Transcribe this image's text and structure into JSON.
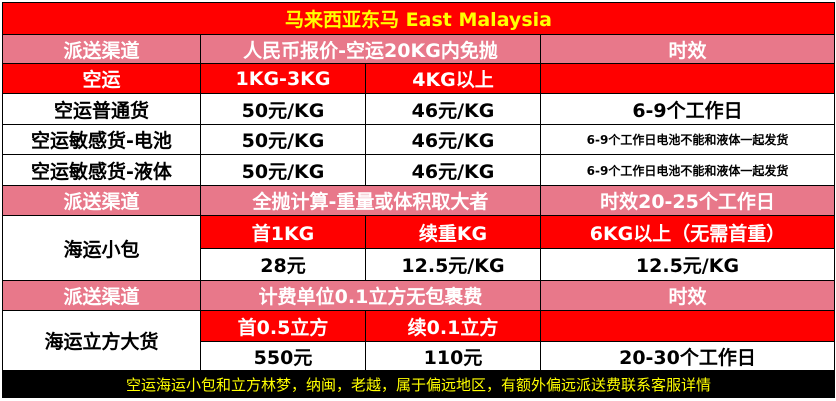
{
  "title": "马来西亚东马 East Malaysia",
  "table": {
    "rows": [
      [
        "派送渠道",
        "人民币报价-空运20KG内免抛",
        "时效"
      ],
      [
        "空运",
        "1KG-3KG",
        "4KG以上"
      ],
      [
        "空运普通货",
        "50元/KG",
        "46元/KG",
        "6-9个工作日"
      ],
      [
        "空运敏感货-电池",
        "50元/KG",
        "46元/KG",
        "6-9个工作日电池不能和液体一起发货"
      ],
      [
        "空运敏感货-液体",
        "50元/KG",
        "46元/KG",
        "6-9个工作日电池不能和液体一起发货"
      ],
      [
        "派送渠道",
        "全抛计算-重量或体积取大者",
        "时效20-25个工作日"
      ],
      [
        "海运小包",
        "首1KG",
        "续重KG",
        "6KG以上（无需首重）"
      ],
      [
        "28元",
        "12.5元/KG",
        "12.5元/KG"
      ],
      [
        "派送渠道",
        "计费单位0.1立方无包裹费",
        "时效"
      ],
      [
        "海运立方大货",
        "首0.5立方",
        "续0.1立方"
      ],
      [
        "550元",
        "110元",
        "20-30个工作日"
      ]
    ]
  },
  "footer": "空运海运小包和立方林梦，纳闽，老越，属于偏远地区，有额外偏远派送费联系客服详情"
}
